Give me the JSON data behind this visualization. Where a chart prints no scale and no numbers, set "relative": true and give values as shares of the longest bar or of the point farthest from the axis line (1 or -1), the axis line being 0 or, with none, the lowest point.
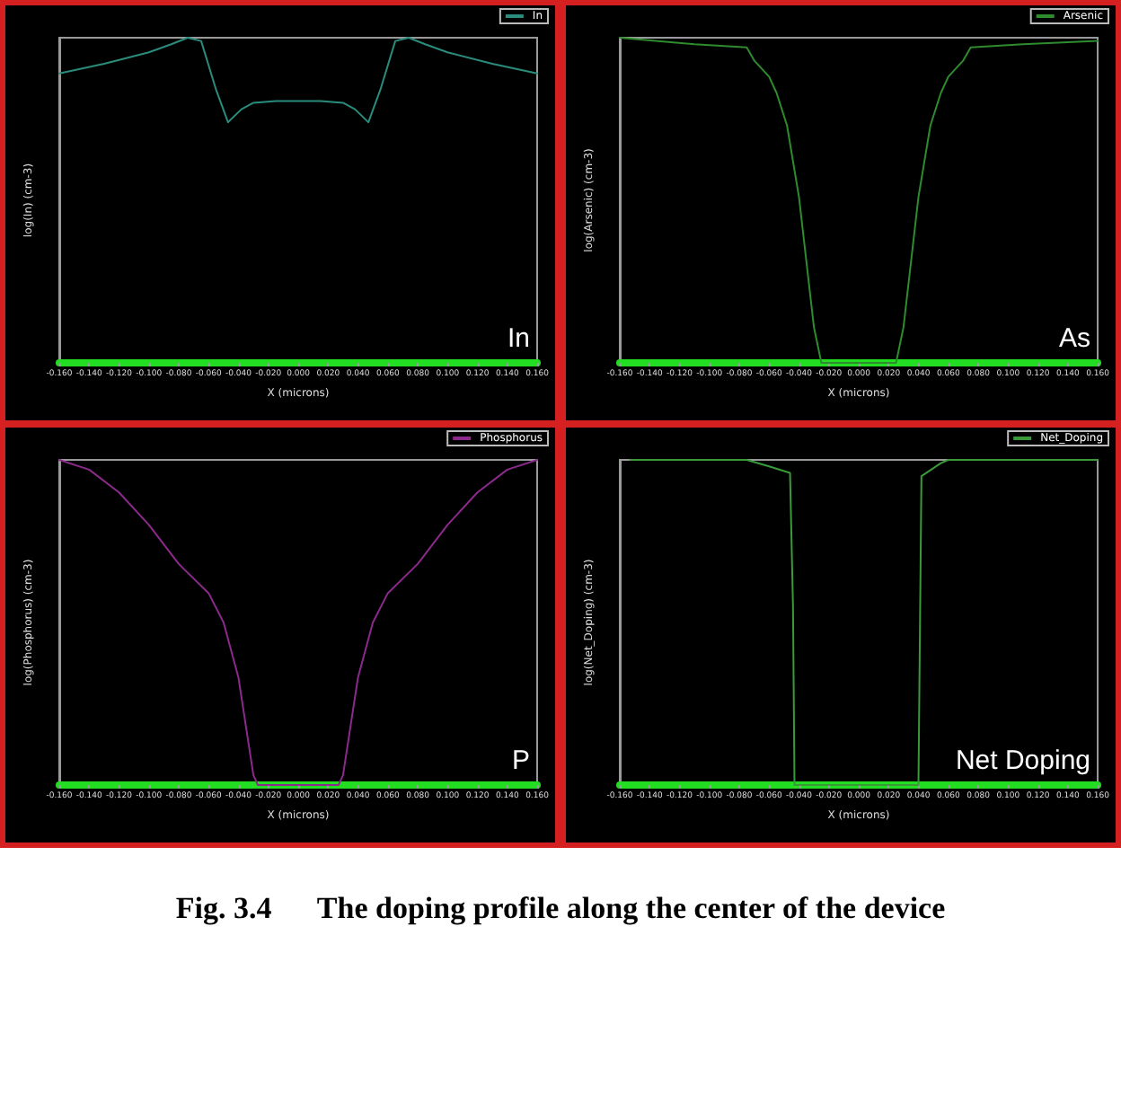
{
  "chart_data": [
    {
      "type": "line",
      "relative": true,
      "xlabel": "X (microns)",
      "ylabel": "log(In) (cm-3)",
      "legend": "top right",
      "marker": "none",
      "tick_labels": "x",
      "annotations": [
        "In"
      ],
      "xlim": [
        -0.16,
        0.16
      ],
      "xticks": [
        {
          "value": -0.16,
          "label": "-0.160"
        },
        {
          "value": -0.14,
          "label": "-0.140"
        },
        {
          "value": -0.12,
          "label": "-0.120"
        },
        {
          "value": -0.1,
          "label": "-0.100"
        },
        {
          "value": -0.08,
          "label": "-0.080"
        },
        {
          "value": -0.06,
          "label": "-0.060"
        },
        {
          "value": -0.04,
          "label": "-0.040"
        },
        {
          "value": -0.02,
          "label": "-0.020"
        },
        {
          "value": 0,
          "label": "0.000"
        },
        {
          "value": 0.02,
          "label": "0.020"
        },
        {
          "value": 0.04,
          "label": "0.040"
        },
        {
          "value": 0.06,
          "label": "0.060"
        },
        {
          "value": 0.08,
          "label": "0.080"
        },
        {
          "value": 0.1,
          "label": "0.100"
        },
        {
          "value": 0.12,
          "label": "0.120"
        },
        {
          "value": 0.14,
          "label": "0.140"
        },
        {
          "value": 0.16,
          "label": "0.160"
        }
      ],
      "series": [
        {
          "name": "In",
          "color": "#2a8c7c",
          "x": [
            -0.16,
            -0.13,
            -0.1,
            -0.085,
            -0.074,
            -0.065,
            -0.055,
            -0.047,
            -0.038,
            -0.03,
            -0.015,
            0,
            0.015,
            0.03,
            0.038,
            0.047,
            0.055,
            0.065,
            0.074,
            0.085,
            0.1,
            0.13,
            0.16
          ],
          "values": [
            0.89,
            0.92,
            0.955,
            0.98,
            1,
            0.99,
            0.84,
            0.74,
            0.78,
            0.8,
            0.805,
            0.805,
            0.805,
            0.8,
            0.78,
            0.74,
            0.84,
            0.99,
            1,
            0.98,
            0.955,
            0.92,
            0.89
          ]
        }
      ]
    },
    {
      "type": "line",
      "relative": true,
      "xlabel": "X (microns)",
      "ylabel": "log(Arsenic) (cm-3)",
      "legend": "top right",
      "marker": "none",
      "tick_labels": "x",
      "annotations": [
        "As"
      ],
      "xlim": [
        -0.16,
        0.16
      ],
      "xticks": [
        {
          "value": -0.16,
          "label": "-0.160"
        },
        {
          "value": -0.14,
          "label": "-0.140"
        },
        {
          "value": -0.12,
          "label": "-0.120"
        },
        {
          "value": -0.1,
          "label": "-0.100"
        },
        {
          "value": -0.08,
          "label": "-0.080"
        },
        {
          "value": -0.06,
          "label": "-0.060"
        },
        {
          "value": -0.04,
          "label": "-0.040"
        },
        {
          "value": -0.02,
          "label": "-0.020"
        },
        {
          "value": 0,
          "label": "0.000"
        },
        {
          "value": 0.02,
          "label": "0.020"
        },
        {
          "value": 0.04,
          "label": "0.040"
        },
        {
          "value": 0.06,
          "label": "0.060"
        },
        {
          "value": 0.08,
          "label": "0.080"
        },
        {
          "value": 0.1,
          "label": "0.100"
        },
        {
          "value": 0.12,
          "label": "0.120"
        },
        {
          "value": 0.14,
          "label": "0.140"
        },
        {
          "value": 0.16,
          "label": "0.160"
        }
      ],
      "series": [
        {
          "name": "Arsenic",
          "color": "#2e8b2e",
          "x": [
            -0.16,
            -0.11,
            -0.075,
            -0.07,
            -0.06,
            -0.055,
            -0.048,
            -0.04,
            -0.03,
            -0.025,
            0,
            0.025,
            0.03,
            0.04,
            0.048,
            0.055,
            0.06,
            0.07,
            0.075,
            0.11,
            0.16
          ],
          "values": [
            1,
            0.98,
            0.97,
            0.93,
            0.88,
            0.83,
            0.73,
            0.51,
            0.11,
            0,
            0,
            0,
            0.11,
            0.51,
            0.73,
            0.83,
            0.88,
            0.93,
            0.97,
            0.98,
            0.99
          ]
        }
      ]
    },
    {
      "type": "line",
      "relative": true,
      "xlabel": "X (microns)",
      "ylabel": "log(Phosphorus) (cm-3)",
      "legend": "top right",
      "marker": "none",
      "tick_labels": "x",
      "annotations": [
        "P"
      ],
      "xlim": [
        -0.16,
        0.16
      ],
      "xticks": [
        {
          "value": -0.16,
          "label": "-0.160"
        },
        {
          "value": -0.14,
          "label": "-0.140"
        },
        {
          "value": -0.12,
          "label": "-0.120"
        },
        {
          "value": -0.1,
          "label": "-0.100"
        },
        {
          "value": -0.08,
          "label": "-0.080"
        },
        {
          "value": -0.06,
          "label": "-0.060"
        },
        {
          "value": -0.04,
          "label": "-0.040"
        },
        {
          "value": -0.02,
          "label": "-0.020"
        },
        {
          "value": 0,
          "label": "0.000"
        },
        {
          "value": 0.02,
          "label": "0.020"
        },
        {
          "value": 0.04,
          "label": "0.040"
        },
        {
          "value": 0.06,
          "label": "0.060"
        },
        {
          "value": 0.08,
          "label": "0.080"
        },
        {
          "value": 0.1,
          "label": "0.100"
        },
        {
          "value": 0.12,
          "label": "0.120"
        },
        {
          "value": 0.14,
          "label": "0.140"
        },
        {
          "value": 0.16,
          "label": "0.160"
        }
      ],
      "series": [
        {
          "name": "Phosphorus",
          "color": "#8b2a8b",
          "x": [
            -0.16,
            -0.14,
            -0.12,
            -0.1,
            -0.08,
            -0.06,
            -0.05,
            -0.04,
            -0.035,
            -0.03,
            -0.027,
            0,
            0.027,
            0.03,
            0.035,
            0.04,
            0.05,
            0.06,
            0.08,
            0.1,
            0.12,
            0.14,
            0.16
          ],
          "values": [
            1,
            0.97,
            0.9,
            0.8,
            0.68,
            0.59,
            0.5,
            0.33,
            0.18,
            0.03,
            0,
            0,
            0,
            0.03,
            0.18,
            0.33,
            0.5,
            0.59,
            0.68,
            0.8,
            0.9,
            0.97,
            1
          ]
        }
      ]
    },
    {
      "type": "line",
      "relative": true,
      "xlabel": "X (microns)",
      "ylabel": "log(Net_Doping) (cm-3)",
      "legend": "top right",
      "marker": "none",
      "tick_labels": "x",
      "annotations": [
        "Net Doping",
        "Fig. 3.4      The doping profile along the center of the device"
      ],
      "xlim": [
        -0.16,
        0.16
      ],
      "xticks": [
        {
          "value": -0.16,
          "label": "-0.160"
        },
        {
          "value": -0.14,
          "label": "-0.140"
        },
        {
          "value": -0.12,
          "label": "-0.120"
        },
        {
          "value": -0.1,
          "label": "-0.100"
        },
        {
          "value": -0.08,
          "label": "-0.080"
        },
        {
          "value": -0.06,
          "label": "-0.060"
        },
        {
          "value": -0.04,
          "label": "-0.040"
        },
        {
          "value": -0.02,
          "label": "-0.020"
        },
        {
          "value": 0,
          "label": "0.000"
        },
        {
          "value": 0.02,
          "label": "0.020"
        },
        {
          "value": 0.04,
          "label": "0.040"
        },
        {
          "value": 0.06,
          "label": "0.060"
        },
        {
          "value": 0.08,
          "label": "0.080"
        },
        {
          "value": 0.1,
          "label": "0.100"
        },
        {
          "value": 0.12,
          "label": "0.120"
        },
        {
          "value": 0.14,
          "label": "0.140"
        },
        {
          "value": 0.16,
          "label": "0.160"
        }
      ],
      "series": [
        {
          "name": "Net_Doping",
          "color": "#3a9a3a",
          "x": [
            -0.153,
            -0.075,
            -0.06,
            -0.046,
            -0.044,
            -0.043,
            0.04,
            0.042,
            0.055,
            0.06,
            0.16
          ],
          "values": [
            1,
            1,
            0.98,
            0.96,
            0.55,
            0,
            0,
            0.95,
            0.99,
            1,
            1
          ]
        }
      ]
    }
  ]
}
